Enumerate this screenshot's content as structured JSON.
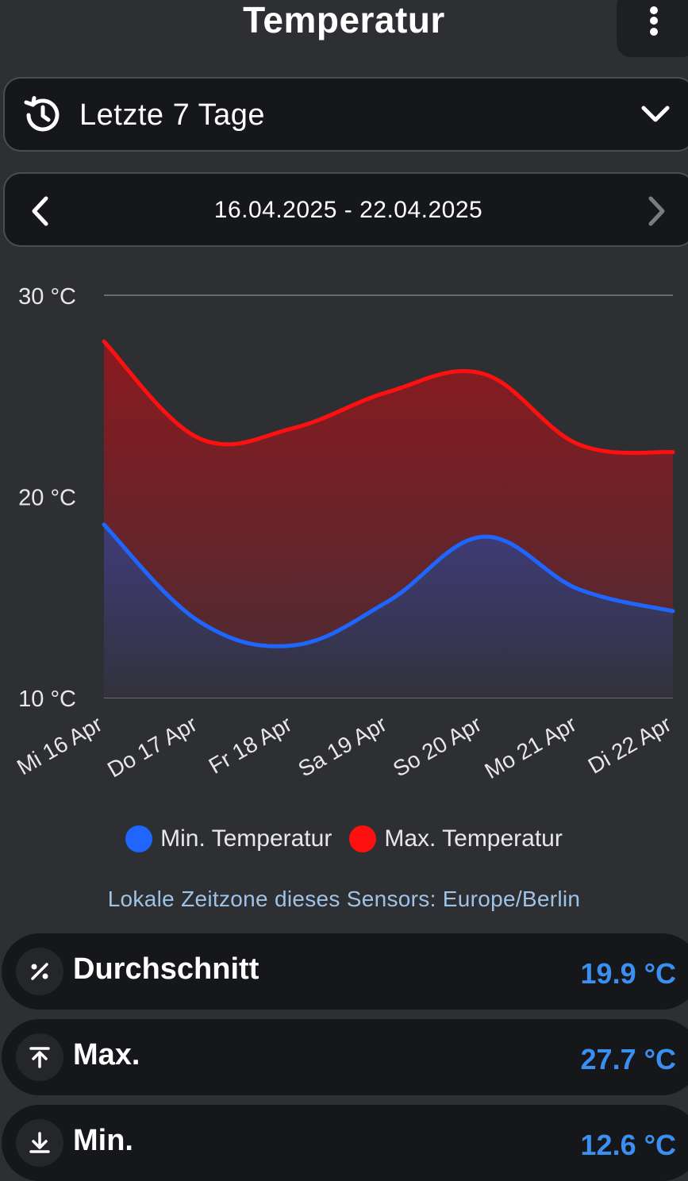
{
  "header": {
    "title": "Temperatur",
    "menu_icon": "more-vertical-icon"
  },
  "range_select": {
    "icon": "history-icon",
    "label": "Letzte 7 Tage",
    "chevron_icon": "chevron-down-icon"
  },
  "date_nav": {
    "range_text": "16.04.2025 - 22.04.2025",
    "prev_icon": "chevron-left-icon",
    "next_icon": "chevron-right-icon"
  },
  "colors": {
    "min_series": "#1f66ff",
    "max_series": "#ff1010",
    "accent_value": "#3a8ff0",
    "timezone_text": "#9fc3e6"
  },
  "chart_data": {
    "type": "area",
    "categories": [
      "Mi 16 Apr",
      "Do 17 Apr",
      "Fr 18 Apr",
      "Sa 19 Apr",
      "So 20 Apr",
      "Mo 21 Apr",
      "Di 22 Apr"
    ],
    "series": [
      {
        "name": "Min. Temperatur",
        "values": [
          18.6,
          13.8,
          12.6,
          14.8,
          18.0,
          15.4,
          14.3
        ]
      },
      {
        "name": "Max. Temperatur",
        "values": [
          27.7,
          22.9,
          23.4,
          25.2,
          26.1,
          22.6,
          22.2
        ]
      }
    ],
    "y_ticks": [
      "30 °C",
      "20 °C",
      "10 °C"
    ],
    "ylim": [
      10,
      30
    ],
    "grid": true,
    "legend_position": "bottom"
  },
  "legend": {
    "min_label": "Min. Temperatur",
    "max_label": "Max. Temperatur"
  },
  "timezone_note": "Lokale Zeitzone dieses Sensors: Europe/Berlin",
  "stats": [
    {
      "icon": "percent-icon",
      "label": "Durchschnitt",
      "value": "19.9 °C"
    },
    {
      "icon": "arrow-up-to-line-icon",
      "label": "Max.",
      "value": "27.7 °C"
    },
    {
      "icon": "arrow-down-to-line-icon",
      "label": "Min.",
      "value": "12.6 °C"
    }
  ]
}
